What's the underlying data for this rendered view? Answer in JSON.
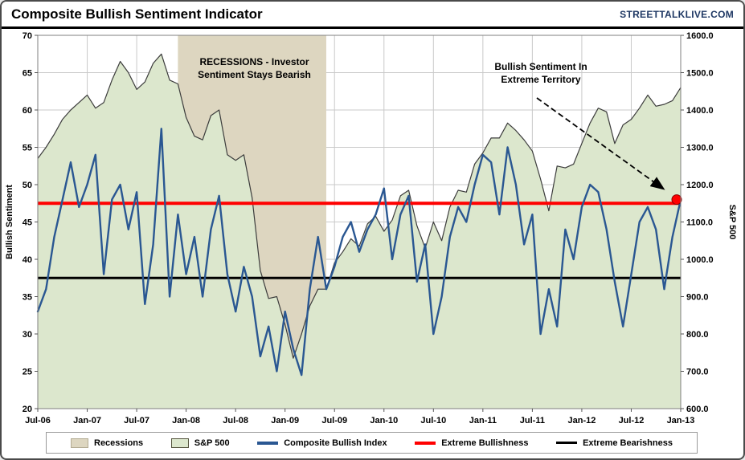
{
  "header": {
    "title": "Composite Bullish Sentiment Indicator",
    "site": "STREETTALKLIVE.COM"
  },
  "axes": {
    "left_title": "Bullish Sentiment",
    "right_title": "S&P 500"
  },
  "annotations": {
    "recession_label": "RECESSIONS - Investor Sentiment Stays Bearish",
    "extreme_label": "Bullish Sentiment In Extreme Territory"
  },
  "legend": {
    "items": [
      {
        "label": "Recessions",
        "type": "box",
        "color": "#ddd6c0"
      },
      {
        "label": "S&P 500",
        "type": "box",
        "color": "#dce7cd"
      },
      {
        "label": "Composite Bullish Index",
        "type": "line",
        "color": "#2a5792"
      },
      {
        "label": "Extreme Bullishness",
        "type": "line",
        "color": "#ff0000"
      },
      {
        "label": "Extreme Bearishness",
        "type": "line",
        "color": "#000000"
      }
    ]
  },
  "colors": {
    "grid": "#c9c9c9",
    "plot_border": "#7f7f7f",
    "recession_band": "#ddd6c0",
    "sp500_fill": "#dce7cd",
    "sp500_line": "#3c3c3c",
    "bullish_line": "#2a5792",
    "extreme_bullish": "#ff0000",
    "extreme_bearish": "#000000",
    "site_text": "#1f3864"
  },
  "chart_data": {
    "type": "line",
    "title": "Composite Bullish Sentiment Indicator",
    "x_unit": "month",
    "x_range": [
      "Jul-06",
      "Jan-13"
    ],
    "x_months_total": 78,
    "x_tick_every": 6,
    "x_tick_labels": [
      "Jul-06",
      "Jan-07",
      "Jul-07",
      "Jan-08",
      "Jul-08",
      "Jan-09",
      "Jul-09",
      "Jan-10",
      "Jul-10",
      "Jan-11",
      "Jul-11",
      "Jan-12",
      "Jul-12",
      "Jan-13"
    ],
    "left_axis": {
      "label": "Bullish Sentiment",
      "min": 20,
      "max": 70,
      "step": 5
    },
    "right_axis": {
      "label": "S&P 500",
      "min": 600,
      "max": 1600,
      "step": 100,
      "decimals": 1
    },
    "grid": true,
    "legend_position": "bottom",
    "recession_band": {
      "start_month": 17,
      "end_month": 35,
      "start_label": "Dec-07",
      "end_label": "Jun-09",
      "color": "#ddd6c0"
    },
    "series": [
      {
        "name": "S&P 500",
        "axis": "right",
        "style": "area",
        "fill_color": "#dce7cd",
        "line_color": "#3c3c3c",
        "values": [
          1270,
          1300,
          1335,
          1375,
          1400,
          1420,
          1440,
          1405,
          1420,
          1480,
          1530,
          1500,
          1455,
          1475,
          1525,
          1550,
          1480,
          1470,
          1380,
          1330,
          1320,
          1385,
          1400,
          1280,
          1265,
          1280,
          1165,
          970,
          895,
          900,
          825,
          735,
          800,
          875,
          920,
          920,
          990,
          1020,
          1055,
          1035,
          1095,
          1115,
          1075,
          1105,
          1170,
          1185,
          1090,
          1030,
          1100,
          1050,
          1140,
          1185,
          1180,
          1255,
          1285,
          1325,
          1325,
          1365,
          1345,
          1320,
          1290,
          1215,
          1130,
          1250,
          1245,
          1255,
          1310,
          1365,
          1405,
          1395,
          1310,
          1360,
          1375,
          1405,
          1440,
          1410,
          1415,
          1425,
          1460
        ]
      },
      {
        "name": "Composite Bullish Index",
        "axis": "left",
        "style": "line",
        "color": "#2a5792",
        "values": [
          33,
          36,
          43,
          48,
          53,
          47,
          50,
          54,
          38,
          48,
          50,
          44,
          49,
          34,
          42,
          57.5,
          35,
          46,
          38,
          43,
          35,
          44,
          48.5,
          38,
          33,
          39,
          35,
          27,
          31,
          25,
          33,
          28,
          24.5,
          36,
          43,
          36,
          39,
          43,
          45,
          41,
          44,
          46,
          49.5,
          40,
          46,
          48.5,
          37,
          42,
          30,
          35,
          43,
          47,
          45,
          50,
          54,
          53,
          46,
          55,
          50,
          42,
          46,
          30,
          36,
          31,
          44,
          40,
          47,
          50,
          49,
          44,
          37,
          31,
          38,
          45,
          47,
          44,
          36,
          43,
          48
        ]
      }
    ],
    "reference_lines": [
      {
        "name": "Extreme Bullishness",
        "axis": "left",
        "value": 47.5,
        "color": "#ff0000",
        "width": 4
      },
      {
        "name": "Extreme Bearishness",
        "axis": "left",
        "value": 37.5,
        "color": "#000000",
        "width": 3
      }
    ],
    "end_marker": {
      "month_index": 78,
      "value": 48,
      "color": "#ff0000",
      "label": "Bullish Sentiment In Extreme Territory"
    }
  }
}
